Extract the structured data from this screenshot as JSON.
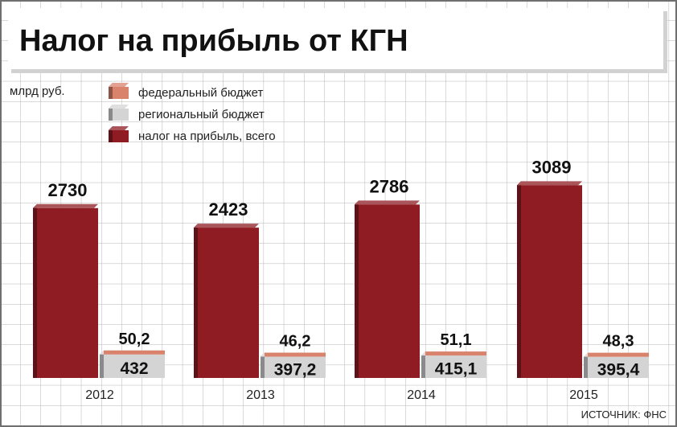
{
  "title": "Налог на прибыль от КГН",
  "unit_label": "млрд руб.",
  "source": "ИСТОЧНИК: ФНС",
  "legend": [
    {
      "label": "федеральный бюджет",
      "color": "#d9826c"
    },
    {
      "label": "региональный бюджет",
      "color": "#d4d4d4"
    },
    {
      "label": "налог на прибыль, всего",
      "color": "#8e1c22"
    }
  ],
  "colors": {
    "total": "#8e1c22",
    "regional": "#d4d4d4",
    "federal": "#d9826c",
    "grid": "#b4b4b4",
    "frame": "#6f6f6f"
  },
  "chart_data": {
    "type": "bar",
    "categories": [
      "2012",
      "2013",
      "2014",
      "2015"
    ],
    "series": [
      {
        "name": "налог на прибыль, всего",
        "values": [
          2730,
          2423,
          2786,
          3089
        ],
        "labels": [
          "2730",
          "2423",
          "2786",
          "3089"
        ]
      },
      {
        "name": "региональный бюджет",
        "values": [
          432,
          397.2,
          415.1,
          395.4
        ],
        "labels": [
          "432",
          "397,2",
          "415,1",
          "395,4"
        ]
      },
      {
        "name": "федеральный бюджет",
        "values": [
          50.2,
          46.2,
          51.1,
          48.3
        ],
        "labels": [
          "50,2",
          "46,2",
          "51,1",
          "48,3"
        ]
      }
    ],
    "stacked_series": [
      "региональный бюджет",
      "федеральный бюджет"
    ],
    "ylabel": "млрд руб.",
    "ylim": [
      0,
      3550
    ],
    "grid": true,
    "legend_position": "top-left"
  }
}
